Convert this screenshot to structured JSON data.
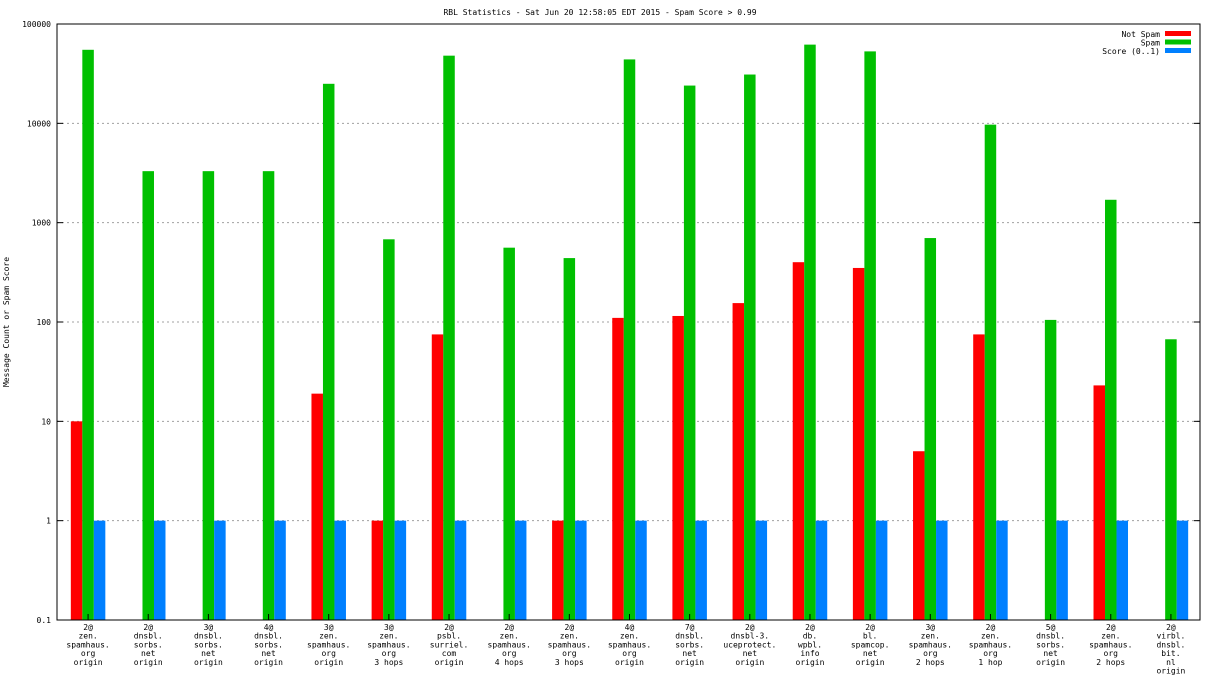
{
  "chart_data": {
    "type": "bar",
    "title": "RBL Statistics - Sat Jun 20 12:58:05 EDT 2015 - Spam Score > 0.99",
    "xlabel": "",
    "ylabel": "Message Count or Spam Score",
    "yscale": "log",
    "ylim": [
      0.1,
      100000
    ],
    "yticks": [
      "0.1",
      "1",
      "10",
      "100",
      "1000",
      "10000",
      "100000"
    ],
    "yticks_values": [
      0.1,
      1,
      10,
      100,
      1000,
      10000,
      100000
    ],
    "grid": true,
    "legend_position": "top-right",
    "categories": [
      [
        "2@",
        "zen.",
        "spamhaus.",
        "org",
        "origin"
      ],
      [
        "2@",
        "dnsbl.",
        "sorbs.",
        "net",
        "origin"
      ],
      [
        "3@",
        "dnsbl.",
        "sorbs.",
        "net",
        "origin"
      ],
      [
        "4@",
        "dnsbl.",
        "sorbs.",
        "net",
        "origin"
      ],
      [
        "3@",
        "zen.",
        "spamhaus.",
        "org",
        "origin"
      ],
      [
        "3@",
        "zen.",
        "spamhaus.",
        "org",
        "3 hops"
      ],
      [
        "2@",
        "psbl.",
        "surriel.",
        "com",
        "origin"
      ],
      [
        "2@",
        "zen.",
        "spamhaus.",
        "org",
        "4 hops"
      ],
      [
        "2@",
        "zen.",
        "spamhaus.",
        "org",
        "3 hops"
      ],
      [
        "4@",
        "zen.",
        "spamhaus.",
        "org",
        "origin"
      ],
      [
        "7@",
        "dnsbl.",
        "sorbs.",
        "net",
        "origin"
      ],
      [
        "2@",
        "dnsbl-3.",
        "uceprotect.",
        "net",
        "origin"
      ],
      [
        "2@",
        "db.",
        "wpbl.",
        "info",
        "origin"
      ],
      [
        "2@",
        "bl.",
        "spamcop.",
        "net",
        "origin"
      ],
      [
        "3@",
        "zen.",
        "spamhaus.",
        "org",
        "2 hops"
      ],
      [
        "2@",
        "zen.",
        "spamhaus.",
        "org",
        "1 hop"
      ],
      [
        "5@",
        "dnsbl.",
        "sorbs.",
        "net",
        "origin"
      ],
      [
        "2@",
        "zen.",
        "spamhaus.",
        "org",
        "2 hops"
      ],
      [
        "2@",
        "virbl.",
        "dnsbl.",
        "bit.",
        "nl",
        "origin"
      ]
    ],
    "series": [
      {
        "name": "Not Spam",
        "color": "#ff0000",
        "values": [
          10,
          null,
          null,
          null,
          19,
          1,
          75,
          null,
          1,
          110,
          115,
          155,
          400,
          350,
          5,
          75,
          null,
          23,
          null
        ]
      },
      {
        "name": "Spam",
        "color": "#00c000",
        "values": [
          55000,
          3300,
          3300,
          3300,
          25000,
          680,
          48000,
          560,
          440,
          44000,
          24000,
          31000,
          62000,
          53000,
          700,
          9700,
          105,
          1700,
          67
        ]
      },
      {
        "name": "Score (0..1)",
        "color": "#0080ff",
        "values": [
          1,
          1,
          1,
          1,
          1,
          1,
          1,
          1,
          1,
          1,
          1,
          1,
          1,
          1,
          1,
          1,
          1,
          1,
          1
        ]
      }
    ]
  }
}
